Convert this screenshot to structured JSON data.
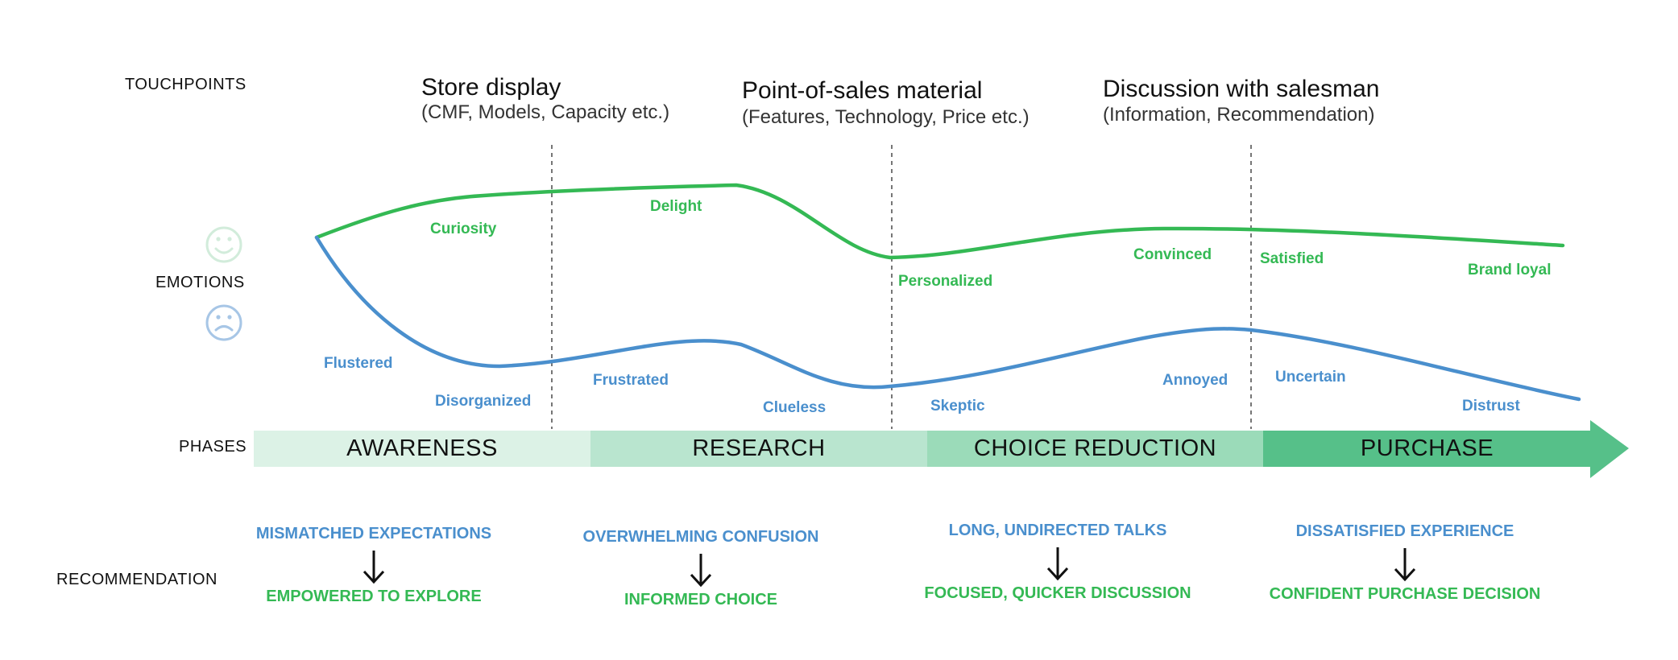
{
  "colors": {
    "positive": "#34b954",
    "negative": "#4a8fcd",
    "phase_1": "#dcf2e6",
    "phase_2": "#b9e5cf",
    "phase_3": "#9bdbb9",
    "phase_4": "#56c089",
    "divider": "#555555"
  },
  "row_labels": {
    "touchpoints": "TOUCHPOINTS",
    "emotions": "EMOTIONS",
    "phases": "PHASES",
    "recommendation": "RECOMMENDATION"
  },
  "touchpoints": [
    {
      "title": "Store display",
      "subtitle": "(CMF, Models, Capacity etc.)"
    },
    {
      "title": "Point-of-sales material",
      "subtitle": "(Features, Technology, Price etc.)"
    },
    {
      "title": "Discussion with salesman",
      "subtitle": "(Information, Recommendation)"
    }
  ],
  "emotion_icons": {
    "happy": "smiley-face-icon",
    "sad": "sad-face-icon"
  },
  "positive_emotions": [
    "Curiosity",
    "Delight",
    "Personalized",
    "Convinced",
    "Satisfied",
    "Brand loyal"
  ],
  "negative_emotions": [
    "Flustered",
    "Disorganized",
    "Frustrated",
    "Clueless",
    "Skeptic",
    "Annoyed",
    "Uncertain",
    "Distrust"
  ],
  "phases": [
    "AWARENESS",
    "RESEARCH",
    "CHOICE REDUCTION",
    "PURCHASE"
  ],
  "recommendations": [
    {
      "problem": "MISMATCHED EXPECTATIONS",
      "goal": "EMPOWERED TO EXPLORE",
      "arrow_icon": "down-arrow-icon"
    },
    {
      "problem": "OVERWHELMING CONFUSION",
      "goal": "INFORMED CHOICE",
      "arrow_icon": "down-arrow-icon"
    },
    {
      "problem": "LONG, UNDIRECTED TALKS",
      "goal": "FOCUSED, QUICKER DISCUSSION",
      "arrow_icon": "down-arrow-icon"
    },
    {
      "problem": "DISSATISFIED EXPERIENCE",
      "goal": "CONFIDENT PURCHASE DECISION",
      "arrow_icon": "down-arrow-icon"
    }
  ]
}
